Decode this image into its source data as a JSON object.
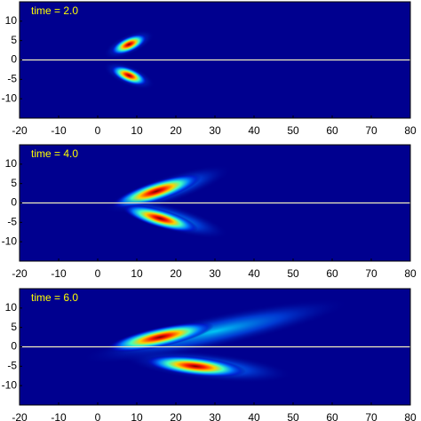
{
  "chart_data": [
    {
      "type": "heatmap",
      "annotation": "time = 2.0",
      "xlim": [
        -20,
        80
      ],
      "ylim": [
        -15,
        15
      ],
      "xticks": [
        -20,
        -10,
        0,
        10,
        20,
        30,
        40,
        50,
        60,
        70,
        80
      ],
      "yticks": [
        -10,
        -5,
        0,
        5,
        10
      ],
      "hline": 0,
      "background": "#00008f",
      "annotation_color": "#ffff00"
    },
    {
      "type": "heatmap",
      "annotation": "time = 4.0",
      "xlim": [
        -20,
        80
      ],
      "ylim": [
        -15,
        15
      ],
      "xticks": [
        -20,
        -10,
        0,
        10,
        20,
        30,
        40,
        50,
        60,
        70,
        80
      ],
      "yticks": [
        -10,
        -5,
        0,
        5,
        10
      ],
      "hline": 0,
      "background": "#00008f",
      "annotation_color": "#ffff00"
    },
    {
      "type": "heatmap",
      "annotation": "time = 6.0",
      "xlim": [
        -20,
        80
      ],
      "ylim": [
        -15,
        15
      ],
      "xticks": [
        -20,
        -10,
        0,
        10,
        20,
        30,
        40,
        50,
        60,
        70,
        80
      ],
      "yticks": [
        -10,
        -5,
        0,
        5,
        10
      ],
      "hline": 0,
      "background": "#00008f",
      "annotation_color": "#ffff00"
    }
  ]
}
